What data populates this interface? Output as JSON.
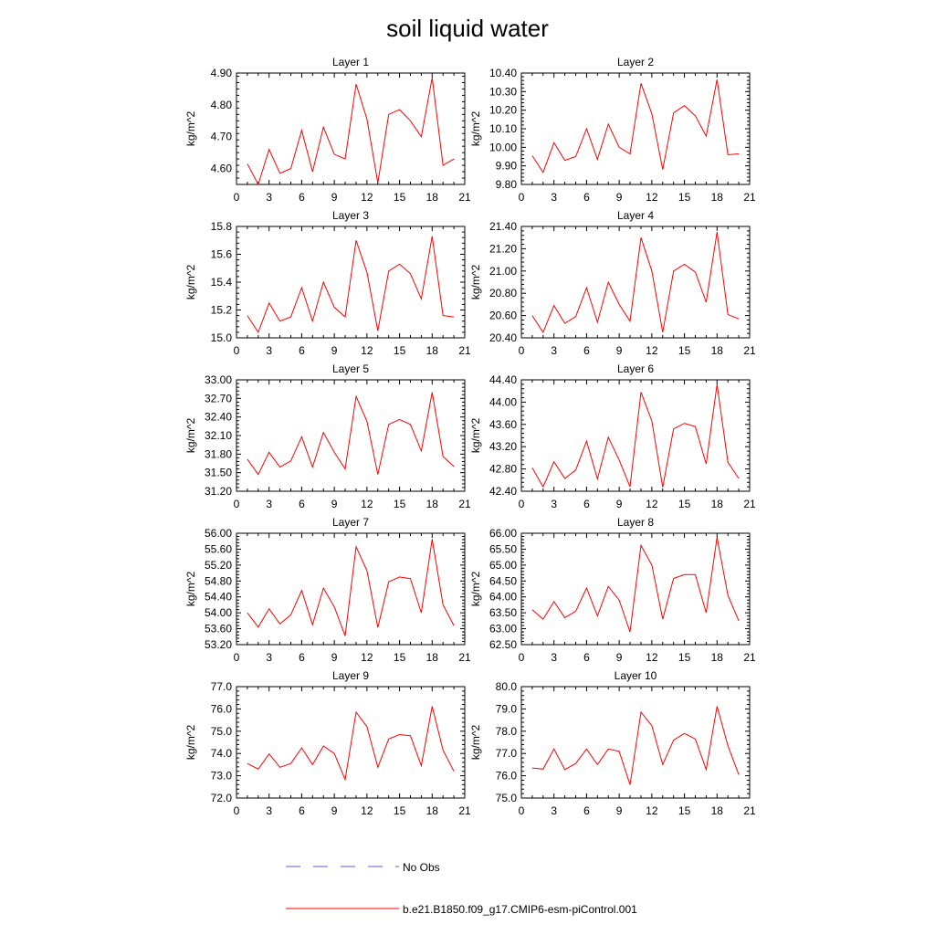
{
  "figure": {
    "title": "soil liquid water",
    "colors": {
      "model_line": "#ff0000",
      "obs_line": "#5b5bd6",
      "axis": "#000000"
    }
  },
  "legend": {
    "obs_label": "No Obs",
    "model_label": "b.e21.B1850.f09_g17.CMIP6-esm-piControl.001"
  },
  "chart_data": [
    {
      "type": "line",
      "title": "Layer 1",
      "ylabel": "kg/m^2",
      "xlim": [
        0,
        21
      ],
      "ylim": [
        4.55,
        4.9
      ],
      "xticks": [
        0,
        3,
        6,
        9,
        12,
        15,
        18,
        21
      ],
      "yticks": [
        4.6,
        4.7,
        4.8,
        4.9
      ],
      "yticklabels": [
        "4.60",
        "4.70",
        "4.80",
        "4.90"
      ],
      "x": [
        1,
        2,
        3,
        4,
        5,
        6,
        7,
        8,
        9,
        10,
        11,
        12,
        13,
        14,
        15,
        16,
        17,
        18,
        19,
        20
      ],
      "series": [
        {
          "name": "b.e21.B1850.f09_g17.CMIP6-esm-piControl.001",
          "values": [
            4.615,
            4.55,
            4.66,
            4.585,
            4.6,
            4.72,
            4.59,
            4.73,
            4.645,
            4.63,
            4.865,
            4.755,
            4.555,
            4.77,
            4.785,
            4.75,
            4.7,
            4.885,
            4.61,
            4.63
          ]
        }
      ]
    },
    {
      "type": "line",
      "title": "Layer 2",
      "ylabel": "kg/m^2",
      "xlim": [
        0,
        21
      ],
      "ylim": [
        9.8,
        10.4
      ],
      "xticks": [
        0,
        3,
        6,
        9,
        12,
        15,
        18,
        21
      ],
      "yticks": [
        9.8,
        9.9,
        10.0,
        10.1,
        10.2,
        10.3,
        10.4
      ],
      "yticklabels": [
        "9.80",
        "9.90",
        "10.00",
        "10.10",
        "10.20",
        "10.30",
        "10.40"
      ],
      "x": [
        1,
        2,
        3,
        4,
        5,
        6,
        7,
        8,
        9,
        10,
        11,
        12,
        13,
        14,
        15,
        16,
        17,
        18,
        19,
        20
      ],
      "series": [
        {
          "name": "b.e21.B1850.f09_g17.CMIP6-esm-piControl.001",
          "values": [
            9.955,
            9.865,
            10.025,
            9.93,
            9.95,
            10.1,
            9.935,
            10.125,
            10.0,
            9.965,
            10.345,
            10.18,
            9.88,
            10.185,
            10.225,
            10.17,
            10.06,
            10.365,
            9.96,
            9.965
          ]
        }
      ]
    },
    {
      "type": "line",
      "title": "Layer 3",
      "ylabel": "kg/m^2",
      "xlim": [
        0,
        21
      ],
      "ylim": [
        15.0,
        15.8
      ],
      "xticks": [
        0,
        3,
        6,
        9,
        12,
        15,
        18,
        21
      ],
      "yticks": [
        15.0,
        15.2,
        15.4,
        15.6,
        15.8
      ],
      "yticklabels": [
        "15.0",
        "15.2",
        "15.4",
        "15.6",
        "15.8"
      ],
      "x": [
        1,
        2,
        3,
        4,
        5,
        6,
        7,
        8,
        9,
        10,
        11,
        12,
        13,
        14,
        15,
        16,
        17,
        18,
        19,
        20
      ],
      "series": [
        {
          "name": "b.e21.B1850.f09_g17.CMIP6-esm-piControl.001",
          "values": [
            15.16,
            15.04,
            15.25,
            15.12,
            15.15,
            15.36,
            15.12,
            15.4,
            15.22,
            15.15,
            15.7,
            15.47,
            15.05,
            15.48,
            15.53,
            15.46,
            15.28,
            15.73,
            15.16,
            15.15
          ]
        }
      ]
    },
    {
      "type": "line",
      "title": "Layer 4",
      "ylabel": "kg/m^2",
      "xlim": [
        0,
        21
      ],
      "ylim": [
        20.4,
        21.4
      ],
      "xticks": [
        0,
        3,
        6,
        9,
        12,
        15,
        18,
        21
      ],
      "yticks": [
        20.4,
        20.6,
        20.8,
        21.0,
        21.2,
        21.4
      ],
      "yticklabels": [
        "20.40",
        "20.60",
        "20.80",
        "21.00",
        "21.20",
        "21.40"
      ],
      "x": [
        1,
        2,
        3,
        4,
        5,
        6,
        7,
        8,
        9,
        10,
        11,
        12,
        13,
        14,
        15,
        16,
        17,
        18,
        19,
        20
      ],
      "series": [
        {
          "name": "b.e21.B1850.f09_g17.CMIP6-esm-piControl.001",
          "values": [
            20.6,
            20.45,
            20.69,
            20.53,
            20.59,
            20.85,
            20.54,
            20.9,
            20.7,
            20.55,
            21.3,
            21.0,
            20.45,
            21.0,
            21.06,
            20.99,
            20.72,
            21.35,
            20.61,
            20.57
          ]
        }
      ]
    },
    {
      "type": "line",
      "title": "Layer 5",
      "ylabel": "kg/m^2",
      "xlim": [
        0,
        21
      ],
      "ylim": [
        31.2,
        33.0
      ],
      "xticks": [
        0,
        3,
        6,
        9,
        12,
        15,
        18,
        21
      ],
      "yticks": [
        31.2,
        31.5,
        31.8,
        32.1,
        32.4,
        32.7,
        33.0
      ],
      "yticklabels": [
        "31.20",
        "31.50",
        "31.80",
        "32.10",
        "32.40",
        "32.70",
        "33.00"
      ],
      "x": [
        1,
        2,
        3,
        4,
        5,
        6,
        7,
        8,
        9,
        10,
        11,
        12,
        13,
        14,
        15,
        16,
        17,
        18,
        19,
        20
      ],
      "series": [
        {
          "name": "b.e21.B1850.f09_g17.CMIP6-esm-piControl.001",
          "values": [
            31.72,
            31.47,
            31.83,
            31.59,
            31.69,
            32.08,
            31.59,
            32.15,
            31.83,
            31.56,
            32.73,
            32.33,
            31.47,
            32.28,
            32.36,
            32.28,
            31.85,
            32.8,
            31.76,
            31.6
          ]
        }
      ]
    },
    {
      "type": "line",
      "title": "Layer 6",
      "ylabel": "kg/m^2",
      "xlim": [
        0,
        21
      ],
      "ylim": [
        42.4,
        44.4
      ],
      "xticks": [
        0,
        3,
        6,
        9,
        12,
        15,
        18,
        21
      ],
      "yticks": [
        42.4,
        42.8,
        43.2,
        43.6,
        44.0,
        44.4
      ],
      "yticklabels": [
        "42.40",
        "42.80",
        "43.20",
        "43.60",
        "44.00",
        "44.40"
      ],
      "x": [
        1,
        2,
        3,
        4,
        5,
        6,
        7,
        8,
        9,
        10,
        11,
        12,
        13,
        14,
        15,
        16,
        17,
        18,
        19,
        20
      ],
      "series": [
        {
          "name": "b.e21.B1850.f09_g17.CMIP6-esm-piControl.001",
          "values": [
            42.82,
            42.48,
            42.93,
            42.63,
            42.78,
            43.3,
            42.62,
            43.37,
            42.96,
            42.48,
            44.18,
            43.66,
            42.47,
            43.52,
            43.62,
            43.56,
            42.89,
            44.32,
            42.92,
            42.63
          ]
        }
      ]
    },
    {
      "type": "line",
      "title": "Layer 7",
      "ylabel": "kg/m^2",
      "xlim": [
        0,
        21
      ],
      "ylim": [
        53.2,
        56.0
      ],
      "xticks": [
        0,
        3,
        6,
        9,
        12,
        15,
        18,
        21
      ],
      "yticks": [
        53.2,
        53.6,
        54.0,
        54.4,
        54.8,
        55.2,
        55.6,
        56.0
      ],
      "yticklabels": [
        "53.20",
        "53.60",
        "54.00",
        "54.40",
        "54.80",
        "55.20",
        "55.60",
        "56.00"
      ],
      "x": [
        1,
        2,
        3,
        4,
        5,
        6,
        7,
        8,
        9,
        10,
        11,
        12,
        13,
        14,
        15,
        16,
        17,
        18,
        19,
        20
      ],
      "series": [
        {
          "name": "b.e21.B1850.f09_g17.CMIP6-esm-piControl.001",
          "values": [
            54.0,
            53.64,
            54.1,
            53.72,
            53.95,
            54.56,
            53.7,
            54.62,
            54.15,
            53.42,
            55.66,
            55.06,
            53.63,
            54.78,
            54.9,
            54.86,
            54.0,
            55.85,
            54.2,
            53.68
          ]
        }
      ]
    },
    {
      "type": "line",
      "title": "Layer 8",
      "ylabel": "kg/m^2",
      "xlim": [
        0,
        21
      ],
      "ylim": [
        62.5,
        66.0
      ],
      "xticks": [
        0,
        3,
        6,
        9,
        12,
        15,
        18,
        21
      ],
      "yticks": [
        62.5,
        63.0,
        63.5,
        64.0,
        64.5,
        65.0,
        65.5,
        66.0
      ],
      "yticklabels": [
        "62.50",
        "63.00",
        "63.50",
        "64.00",
        "64.50",
        "65.00",
        "65.50",
        "66.00"
      ],
      "x": [
        1,
        2,
        3,
        4,
        5,
        6,
        7,
        8,
        9,
        10,
        11,
        12,
        13,
        14,
        15,
        16,
        17,
        18,
        19,
        20
      ],
      "series": [
        {
          "name": "b.e21.B1850.f09_g17.CMIP6-esm-piControl.001",
          "values": [
            63.6,
            63.3,
            63.85,
            63.35,
            63.55,
            64.28,
            63.4,
            64.33,
            63.9,
            62.9,
            65.62,
            65.0,
            63.3,
            64.58,
            64.7,
            64.7,
            63.5,
            65.87,
            64.05,
            63.25
          ]
        }
      ]
    },
    {
      "type": "line",
      "title": "Layer 9",
      "ylabel": "kg/m^2",
      "xlim": [
        0,
        21
      ],
      "ylim": [
        72.0,
        77.0
      ],
      "xticks": [
        0,
        3,
        6,
        9,
        12,
        15,
        18,
        21
      ],
      "yticks": [
        72.0,
        73.0,
        74.0,
        75.0,
        76.0,
        77.0
      ],
      "yticklabels": [
        "72.0",
        "73.0",
        "74.0",
        "75.0",
        "76.0",
        "77.0"
      ],
      "x": [
        1,
        2,
        3,
        4,
        5,
        6,
        7,
        8,
        9,
        10,
        11,
        12,
        13,
        14,
        15,
        16,
        17,
        18,
        19,
        20
      ],
      "series": [
        {
          "name": "b.e21.B1850.f09_g17.CMIP6-esm-piControl.001",
          "values": [
            73.55,
            73.3,
            73.98,
            73.38,
            73.55,
            74.25,
            73.5,
            74.33,
            74.0,
            72.83,
            75.85,
            75.2,
            73.38,
            74.65,
            74.85,
            74.8,
            73.45,
            76.12,
            74.15,
            73.2
          ]
        }
      ]
    },
    {
      "type": "line",
      "title": "Layer 10",
      "ylabel": "kg/m^2",
      "xlim": [
        0,
        21
      ],
      "ylim": [
        75.0,
        80.0
      ],
      "xticks": [
        0,
        3,
        6,
        9,
        12,
        15,
        18,
        21
      ],
      "yticks": [
        75.0,
        76.0,
        77.0,
        78.0,
        79.0,
        80.0
      ],
      "yticklabels": [
        "75.0",
        "76.0",
        "77.0",
        "78.0",
        "79.0",
        "80.0"
      ],
      "x": [
        1,
        2,
        3,
        4,
        5,
        6,
        7,
        8,
        9,
        10,
        11,
        12,
        13,
        14,
        15,
        16,
        17,
        18,
        19,
        20
      ],
      "series": [
        {
          "name": "b.e21.B1850.f09_g17.CMIP6-esm-piControl.001",
          "values": [
            76.35,
            76.3,
            77.2,
            76.28,
            76.55,
            77.2,
            76.5,
            77.2,
            77.1,
            75.6,
            78.85,
            78.25,
            76.5,
            77.6,
            77.9,
            77.65,
            76.28,
            79.12,
            77.35,
            76.05
          ]
        }
      ]
    }
  ]
}
